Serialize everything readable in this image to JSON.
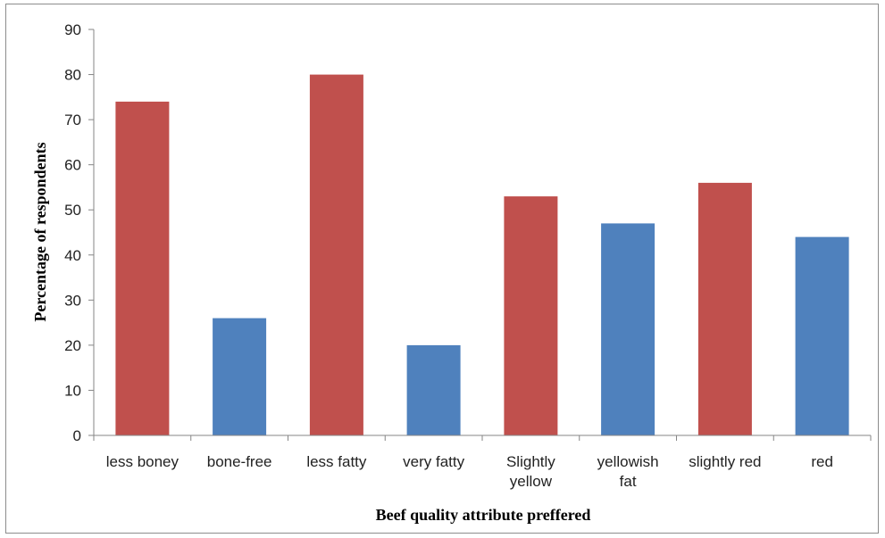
{
  "chart_data": {
    "type": "bar",
    "title": "",
    "xlabel": "Beef quality attribute preffered",
    "ylabel": "Percentage  of respondents",
    "ylim": [
      0,
      90
    ],
    "y_ticks": [
      0,
      10,
      20,
      30,
      40,
      50,
      60,
      70,
      80,
      90
    ],
    "grid": false,
    "legend": "none",
    "categories": [
      [
        "less boney"
      ],
      [
        "bone-free"
      ],
      [
        "less fatty"
      ],
      [
        "very fatty"
      ],
      [
        "Slightly",
        "yellow"
      ],
      [
        "yellowish",
        "fat"
      ],
      [
        "slightly red"
      ],
      [
        "red"
      ]
    ],
    "values": [
      74,
      26,
      80,
      20,
      53,
      47,
      56,
      44
    ],
    "bar_colors": [
      "#c0504d",
      "#4f81bd",
      "#c0504d",
      "#4f81bd",
      "#c0504d",
      "#4f81bd",
      "#c0504d",
      "#4f81bd"
    ]
  }
}
